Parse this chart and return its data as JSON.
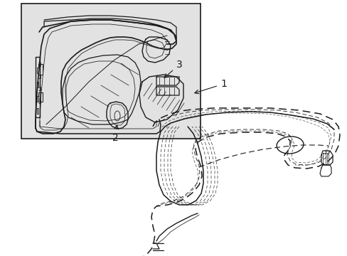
{
  "bg_color": "#ffffff",
  "box_bg": "#e8e8e8",
  "line_color": "#1a1a1a",
  "lw_main": 1.0,
  "lw_thin": 0.55,
  "lw_dash": 1.1
}
